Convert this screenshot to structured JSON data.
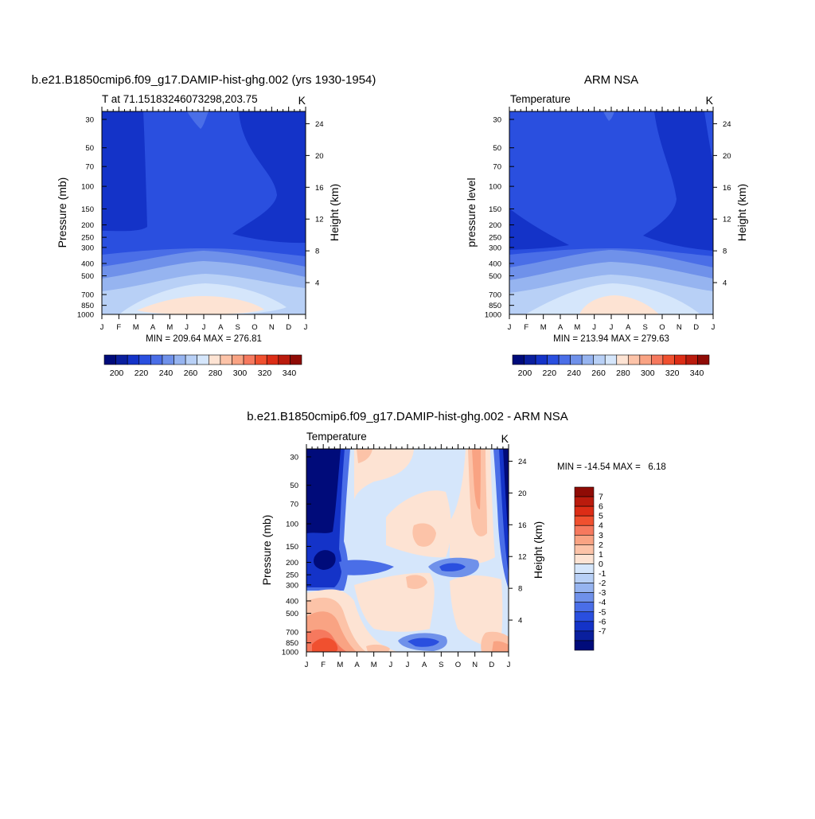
{
  "colors": {
    "warm": [
      "#fde3d3",
      "#fcc3a8",
      "#f9a383",
      "#f6795e",
      "#f0502f",
      "#dc2d16",
      "#ba1b0d",
      "#8f0b05"
    ],
    "cool": [
      "#d5e6fb",
      "#b8d0f6",
      "#96b4f0",
      "#6f91ea",
      "#4a6ee7",
      "#2a4fdf",
      "#1433c8",
      "#0a1f9e",
      "#000b7a"
    ]
  },
  "chart_data": [
    {
      "type": "heatmap",
      "title": "b.e21.B1850cmip6.f09_g17.DAMIP-hist-ghg.002 (yrs 1930-1954)",
      "subtitle": "T at 71.15183246073298,203.75",
      "units": "K",
      "ylabel": "Pressure (mb)",
      "y2label": "Height (km)",
      "x_ticks": [
        "J",
        "F",
        "M",
        "A",
        "M",
        "J",
        "J",
        "A",
        "S",
        "O",
        "N",
        "D",
        "J"
      ],
      "y_ticks": [
        30,
        50,
        70,
        100,
        150,
        200,
        250,
        300,
        400,
        500,
        700,
        850,
        1000
      ],
      "y2_ticks": [
        4,
        8,
        12,
        16,
        20,
        24
      ],
      "ylim": [
        1000,
        26
      ],
      "y_scale": "log",
      "stats_text": "MIN = 209.64 MAX = 276.81",
      "min": 209.64,
      "max": 276.81,
      "colorbar": {
        "orientation": "horizontal",
        "labels": [
          200,
          220,
          240,
          260,
          280,
          300,
          320,
          340
        ],
        "levels": [
          190,
          200,
          210,
          220,
          230,
          240,
          250,
          260,
          270,
          280,
          290,
          300,
          310,
          320,
          330,
          340,
          350
        ]
      }
    },
    {
      "type": "heatmap",
      "title": "ARM NSA",
      "subtitle": "Temperature",
      "units": "K",
      "ylabel": "pressure level",
      "y2label": "Height (km)",
      "x_ticks": [
        "J",
        "F",
        "M",
        "A",
        "M",
        "J",
        "J",
        "A",
        "S",
        "O",
        "N",
        "D",
        "J"
      ],
      "y_ticks": [
        30,
        50,
        70,
        100,
        150,
        200,
        250,
        300,
        400,
        500,
        700,
        850,
        1000
      ],
      "y2_ticks": [
        4,
        8,
        12,
        16,
        20,
        24
      ],
      "ylim": [
        1000,
        26
      ],
      "y_scale": "log",
      "stats_text": "MIN = 213.94 MAX = 279.63",
      "min": 213.94,
      "max": 279.63,
      "colorbar": {
        "orientation": "horizontal",
        "labels": [
          200,
          220,
          240,
          260,
          280,
          300,
          320,
          340
        ],
        "levels": [
          190,
          200,
          210,
          220,
          230,
          240,
          250,
          260,
          270,
          280,
          290,
          300,
          310,
          320,
          330,
          340,
          350
        ]
      }
    },
    {
      "type": "heatmap",
      "title": "b.e21.B1850cmip6.f09_g17.DAMIP-hist-ghg.002 - ARM NSA",
      "subtitle": "Temperature",
      "units": "K",
      "ylabel": "Pressure (mb)",
      "y2label": "Height (km)",
      "x_ticks": [
        "J",
        "F",
        "M",
        "A",
        "M",
        "J",
        "J",
        "A",
        "S",
        "O",
        "N",
        "D",
        "J"
      ],
      "y_ticks": [
        30,
        50,
        70,
        100,
        150,
        200,
        250,
        300,
        400,
        500,
        700,
        850,
        1000
      ],
      "y2_ticks": [
        4,
        8,
        12,
        16,
        20,
        24
      ],
      "ylim": [
        1000,
        26
      ],
      "y_scale": "log",
      "stats_text": "MIN = -14.54 MAX =   6.18",
      "min": -14.54,
      "max": 6.18,
      "colorbar": {
        "orientation": "vertical",
        "labels": [
          7,
          6,
          5,
          4,
          3,
          2,
          1,
          0,
          -1,
          -2,
          -3,
          -4,
          -5,
          -6,
          -7
        ]
      }
    }
  ]
}
